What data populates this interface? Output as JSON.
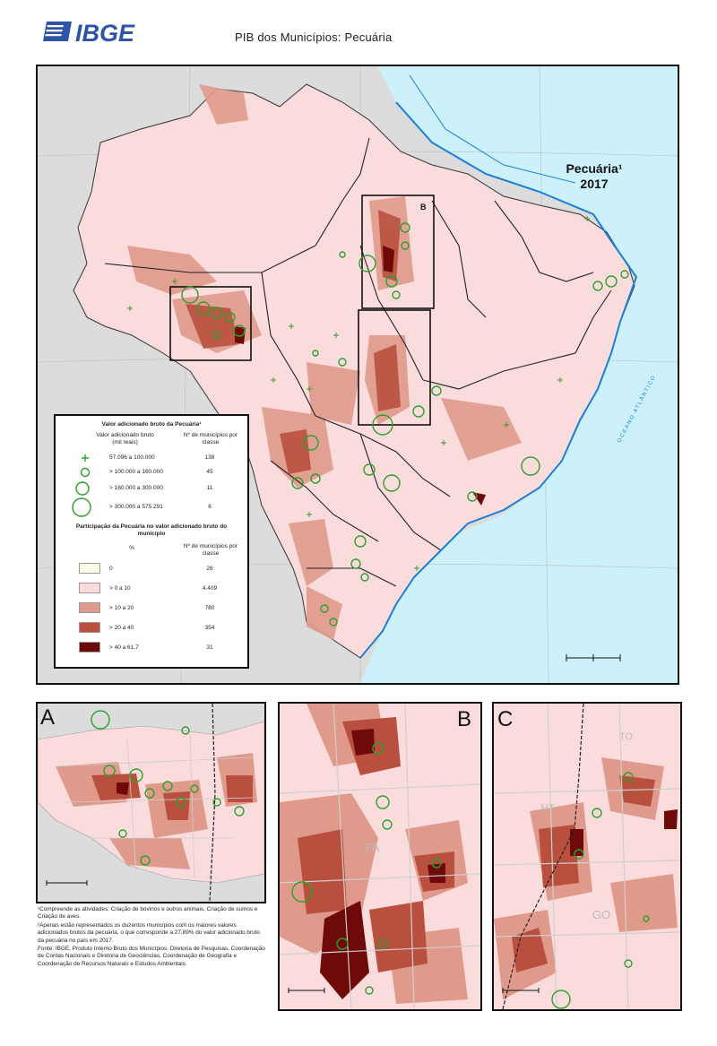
{
  "header": {
    "logo_text": "IBGE",
    "title": "PIB dos Municípios: Pecuária"
  },
  "map": {
    "title_line1": "Pecuária¹",
    "title_line2": "2017",
    "inset_box_labels": [
      "A",
      "B",
      "C"
    ],
    "ocean_label": "OCEANO ATLÂNTICO"
  },
  "legend": {
    "title1": "Valor adicionado bruto da Pecuária¹",
    "col1_header": "Valor adicionado bruto (mil reais)",
    "col2_header": "Nº de municípios por classe",
    "symbols": [
      {
        "label": "57.096 a 100.000",
        "count": "138"
      },
      {
        "label": "> 100.000 a 160.000",
        "count": "45"
      },
      {
        "label": "> 160.000 a 300.000",
        "count": "11"
      },
      {
        "label": "> 300.000 a 575.291",
        "count": "6"
      }
    ],
    "title2": "Participação da Pecuária no valor adicionado bruto do município",
    "pct_header": "%",
    "count_header": "Nº de municípios por classe",
    "classes": [
      {
        "label": "0",
        "count": "26",
        "color": "#fffbe6"
      },
      {
        "label": "> 0 a 10",
        "count": "4.409",
        "color": "#fbdcdc"
      },
      {
        "label": "> 10 a 20",
        "count": "780",
        "color": "#e09a8c"
      },
      {
        "label": "> 20 a 40",
        "count": "354",
        "color": "#b9503f"
      },
      {
        "label": "> 40 a 61,7",
        "count": "31",
        "color": "#6e0a0a"
      }
    ]
  },
  "insets": [
    {
      "letter": "A"
    },
    {
      "letter": "B",
      "state": "PA"
    },
    {
      "letter": "C",
      "states": [
        "MT",
        "GO",
        "TO"
      ]
    }
  ],
  "footnotes": [
    "¹Compreende as atividades: Criação de bovinos e outros animais, Criação de suínos e Criação de aves.",
    "²Apenas estão representados os duzentos municípios com os maiores valores adicionados brutos da pecuária, o que corresponde a 27,89% do valor adicionado bruto da pecuária no país em 2017.",
    "Fonte: IBGE, Produto Interno Bruto dos Municípios. Diretoria de Pesquisas, Coordenação de Contas Nacionais e Diretoria de Geociências, Coordenação de Geografia e Coordenação de Recursos Naturais e Estudos Ambientais."
  ],
  "colors": {
    "ocean": "#cdf1fb",
    "land_other": "#dcdcdc",
    "brazil_base": "#fbdcdc",
    "symbol": "#2ca02c",
    "coast": "#1a7fd6"
  }
}
